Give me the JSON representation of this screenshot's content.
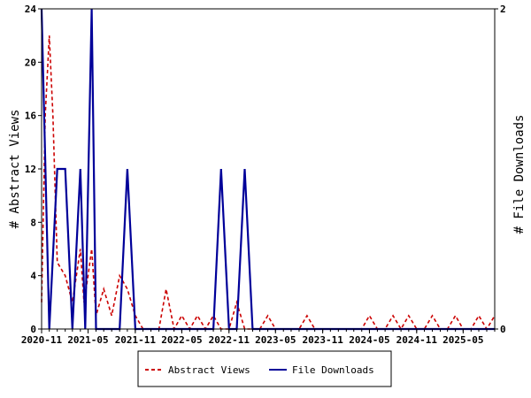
{
  "chart_data": {
    "type": "line",
    "ylabel_left": "# Abstract Views",
    "ylabel_right": "# File Downloads",
    "ylim_left": [
      0,
      24
    ],
    "ylim_right": [
      0,
      2
    ],
    "yticks_left": [
      "0",
      "4",
      "8",
      "12",
      "16",
      "20",
      "24"
    ],
    "yticks_right": [
      "0",
      "2"
    ],
    "xlim": [
      "2020-11-01",
      "2025-09-01"
    ],
    "xticks": [
      "2020-11",
      "2021-05",
      "2021-11",
      "2022-05",
      "2022-11",
      "2023-05",
      "2023-11",
      "2024-05",
      "2024-11",
      "2025-05"
    ],
    "grid": false,
    "legend_position": "bottom",
    "series": [
      {
        "name": "Abstract Views",
        "axis": "left",
        "color": "#cc0000",
        "style": "dashed",
        "points": [
          [
            "2020-11-01",
            2
          ],
          [
            "2020-11-15",
            16
          ],
          [
            "2020-12-01",
            22
          ],
          [
            "2020-12-15",
            16
          ],
          [
            "2021-01-01",
            5
          ],
          [
            "2021-02-01",
            4
          ],
          [
            "2021-03-01",
            2
          ],
          [
            "2021-04-01",
            6
          ],
          [
            "2021-04-15",
            2
          ],
          [
            "2021-05-01",
            4
          ],
          [
            "2021-05-15",
            6
          ],
          [
            "2021-06-01",
            1
          ],
          [
            "2021-07-01",
            3
          ],
          [
            "2021-08-01",
            1
          ],
          [
            "2021-09-01",
            4
          ],
          [
            "2021-10-01",
            3
          ],
          [
            "2021-11-01",
            1
          ],
          [
            "2021-12-01",
            0
          ],
          [
            "2022-01-01",
            0
          ],
          [
            "2022-02-01",
            0
          ],
          [
            "2022-03-01",
            3
          ],
          [
            "2022-04-01",
            0
          ],
          [
            "2022-05-01",
            1
          ],
          [
            "2022-06-01",
            0
          ],
          [
            "2022-07-01",
            1
          ],
          [
            "2022-08-01",
            0
          ],
          [
            "2022-09-01",
            1
          ],
          [
            "2022-10-01",
            0
          ],
          [
            "2022-11-01",
            0
          ],
          [
            "2022-12-01",
            2
          ],
          [
            "2023-01-01",
            0
          ],
          [
            "2023-02-01",
            0
          ],
          [
            "2023-03-01",
            0
          ],
          [
            "2023-04-01",
            1
          ],
          [
            "2023-05-01",
            0
          ],
          [
            "2023-06-01",
            0
          ],
          [
            "2023-07-01",
            0
          ],
          [
            "2023-08-01",
            0
          ],
          [
            "2023-09-01",
            1
          ],
          [
            "2023-10-01",
            0
          ],
          [
            "2023-11-01",
            0
          ],
          [
            "2023-12-01",
            0
          ],
          [
            "2024-01-01",
            0
          ],
          [
            "2024-02-01",
            0
          ],
          [
            "2024-03-01",
            0
          ],
          [
            "2024-04-01",
            0
          ],
          [
            "2024-05-01",
            1
          ],
          [
            "2024-06-01",
            0
          ],
          [
            "2024-07-01",
            0
          ],
          [
            "2024-08-01",
            1
          ],
          [
            "2024-09-01",
            0
          ],
          [
            "2024-10-01",
            1
          ],
          [
            "2024-11-01",
            0
          ],
          [
            "2024-12-01",
            0
          ],
          [
            "2025-01-01",
            1
          ],
          [
            "2025-02-01",
            0
          ],
          [
            "2025-03-01",
            0
          ],
          [
            "2025-04-01",
            1
          ],
          [
            "2025-05-01",
            0
          ],
          [
            "2025-06-01",
            0
          ],
          [
            "2025-07-01",
            1
          ],
          [
            "2025-08-01",
            0
          ],
          [
            "2025-09-01",
            1
          ]
        ]
      },
      {
        "name": "File Downloads",
        "axis": "right",
        "color": "#000099",
        "style": "solid",
        "points": [
          [
            "2020-11-01",
            2
          ],
          [
            "2020-12-01",
            0
          ],
          [
            "2021-01-01",
            1
          ],
          [
            "2021-02-01",
            1
          ],
          [
            "2021-03-01",
            0
          ],
          [
            "2021-04-01",
            1
          ],
          [
            "2021-04-20",
            0
          ],
          [
            "2021-05-15",
            2
          ],
          [
            "2021-06-01",
            0
          ],
          [
            "2021-07-01",
            0
          ],
          [
            "2021-08-01",
            0
          ],
          [
            "2021-09-01",
            0
          ],
          [
            "2021-10-01",
            1
          ],
          [
            "2021-11-01",
            0
          ],
          [
            "2021-12-01",
            0
          ],
          [
            "2022-01-01",
            0
          ],
          [
            "2022-02-01",
            0
          ],
          [
            "2022-03-01",
            0
          ],
          [
            "2022-04-01",
            0
          ],
          [
            "2022-05-01",
            0
          ],
          [
            "2022-06-01",
            0
          ],
          [
            "2022-07-01",
            0
          ],
          [
            "2022-08-01",
            0
          ],
          [
            "2022-09-01",
            0
          ],
          [
            "2022-10-01",
            1
          ],
          [
            "2022-11-01",
            0
          ],
          [
            "2022-12-01",
            0
          ],
          [
            "2023-01-01",
            1
          ],
          [
            "2023-02-01",
            0
          ],
          [
            "2023-03-01",
            0
          ],
          [
            "2023-04-01",
            0
          ],
          [
            "2023-05-01",
            0
          ],
          [
            "2025-09-01",
            0
          ]
        ]
      }
    ]
  }
}
